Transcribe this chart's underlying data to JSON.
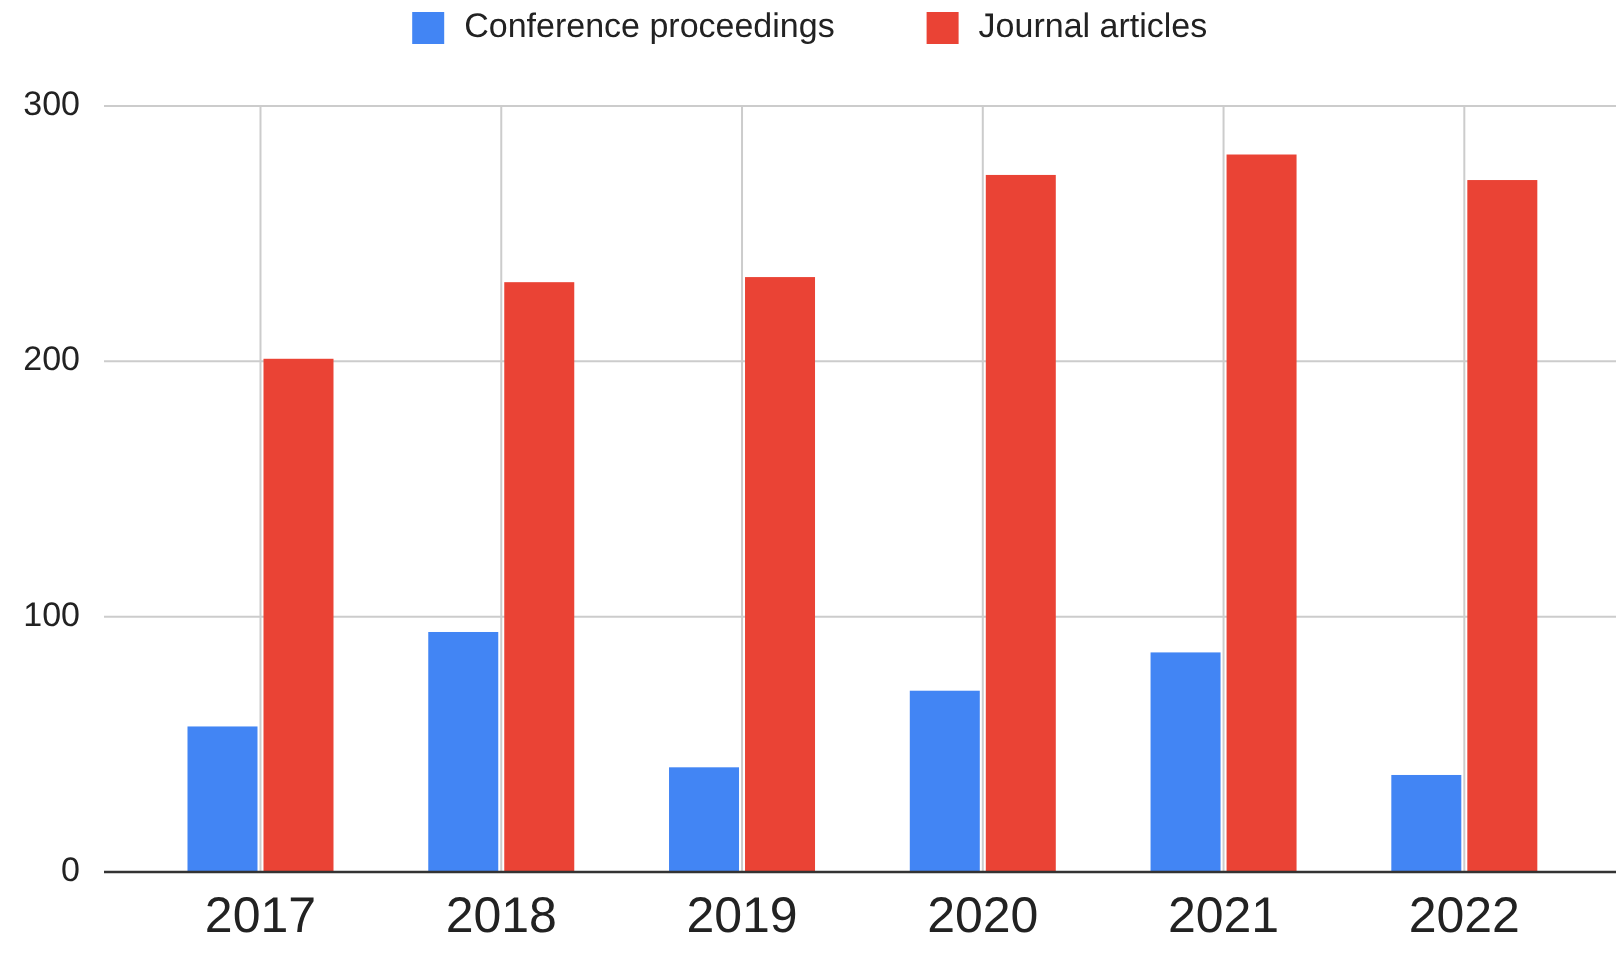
{
  "chart_data": {
    "type": "bar",
    "categories": [
      "2017",
      "2018",
      "2019",
      "2020",
      "2021",
      "2022"
    ],
    "series": [
      {
        "name": "Conference proceedings",
        "color": "#4285f4",
        "values": [
          57,
          94,
          41,
          71,
          86,
          38
        ]
      },
      {
        "name": "Journal articles",
        "color": "#ea4335",
        "values": [
          201,
          231,
          233,
          273,
          281,
          271
        ]
      }
    ],
    "ylim": [
      0,
      300
    ],
    "yticks": [
      0,
      100,
      200,
      300
    ],
    "grid": true,
    "legend": "top"
  }
}
